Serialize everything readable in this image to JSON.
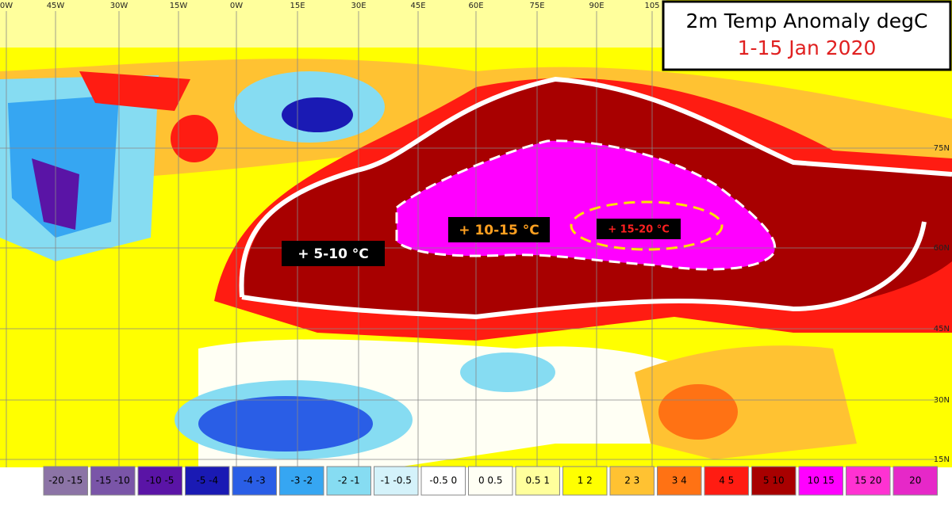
{
  "title": "2m Temp Anomaly degC",
  "subtitle": "1-15 Jan 2020",
  "longitude_labels": [
    "0W",
    "45W",
    "30W",
    "15W",
    "0W",
    "15E",
    "30E",
    "45E",
    "60E",
    "75E",
    "90E",
    "105"
  ],
  "latitude_labels": [
    "75N",
    "60N",
    "45N",
    "30N",
    "15N"
  ],
  "annotations": [
    "+ 5-10 °C",
    "+ 10-15 °C",
    "+ 15-20 °C"
  ],
  "legend": [
    {
      "label": "-20 -15",
      "color": "#8c74a6"
    },
    {
      "label": "-15 -10",
      "color": "#7a55a8"
    },
    {
      "label": "-10 -5",
      "color": "#5a14a6"
    },
    {
      "label": "-5 -4",
      "color": "#1a1ab4"
    },
    {
      "label": "-4 -3",
      "color": "#2a5ee6"
    },
    {
      "label": "-3 -2",
      "color": "#36a6f2"
    },
    {
      "label": "-2 -1",
      "color": "#86dcf2"
    },
    {
      "label": "-1 -0.5",
      "color": "#d4f2fa"
    },
    {
      "label": "-0.5 0",
      "color": "#ffffff"
    },
    {
      "label": "0 0.5",
      "color": "#fffff4"
    },
    {
      "label": "0.5 1",
      "color": "#ffff9c"
    },
    {
      "label": "1 2",
      "color": "#ffff00"
    },
    {
      "label": "2 3",
      "color": "#ffc232"
    },
    {
      "label": "3 4",
      "color": "#ff7214"
    },
    {
      "label": "4 5",
      "color": "#ff1c12"
    },
    {
      "label": "5 10",
      "color": "#a80000"
    },
    {
      "label": "10 15",
      "color": "#ff00ff"
    },
    {
      "label": "15 20",
      "color": "#ff32d2"
    },
    {
      "label": "20",
      "color": "#e628c8"
    }
  ]
}
